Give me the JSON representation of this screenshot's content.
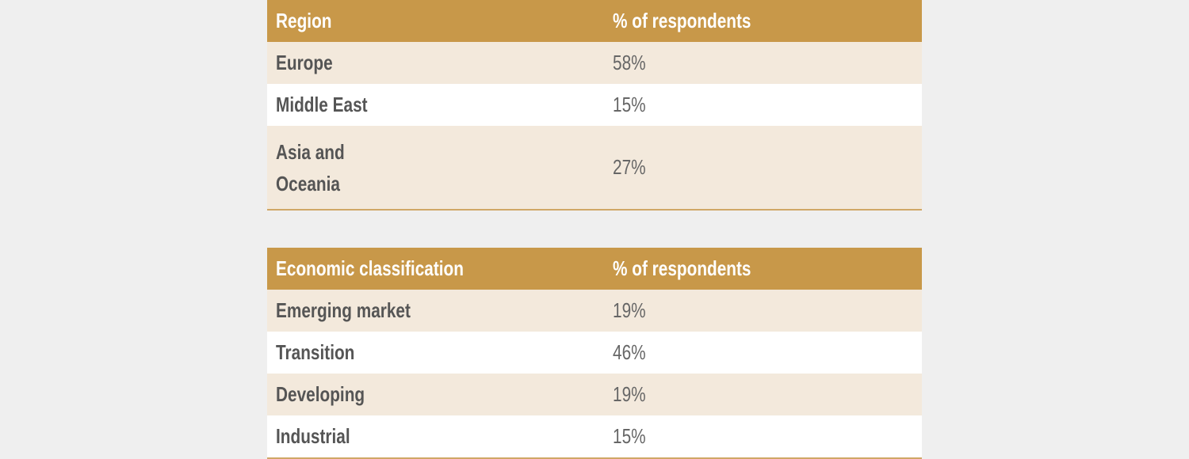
{
  "tables": [
    {
      "headers": [
        "Region",
        "% of respondents"
      ],
      "rows": [
        [
          "Europe",
          "58%"
        ],
        [
          "Middle East",
          "15%"
        ],
        [
          "Asia and Oceania",
          "27%"
        ]
      ]
    },
    {
      "headers": [
        "Economic classification",
        "% of respondents"
      ],
      "rows": [
        [
          "Emerging market",
          "19%"
        ],
        [
          "Transition",
          "46%"
        ],
        [
          "Developing",
          "19%"
        ],
        [
          "Industrial",
          "15%"
        ]
      ]
    }
  ],
  "colors": {
    "header": "#c89849",
    "row_alt": "#f3e9dc",
    "background": "#efefef"
  }
}
